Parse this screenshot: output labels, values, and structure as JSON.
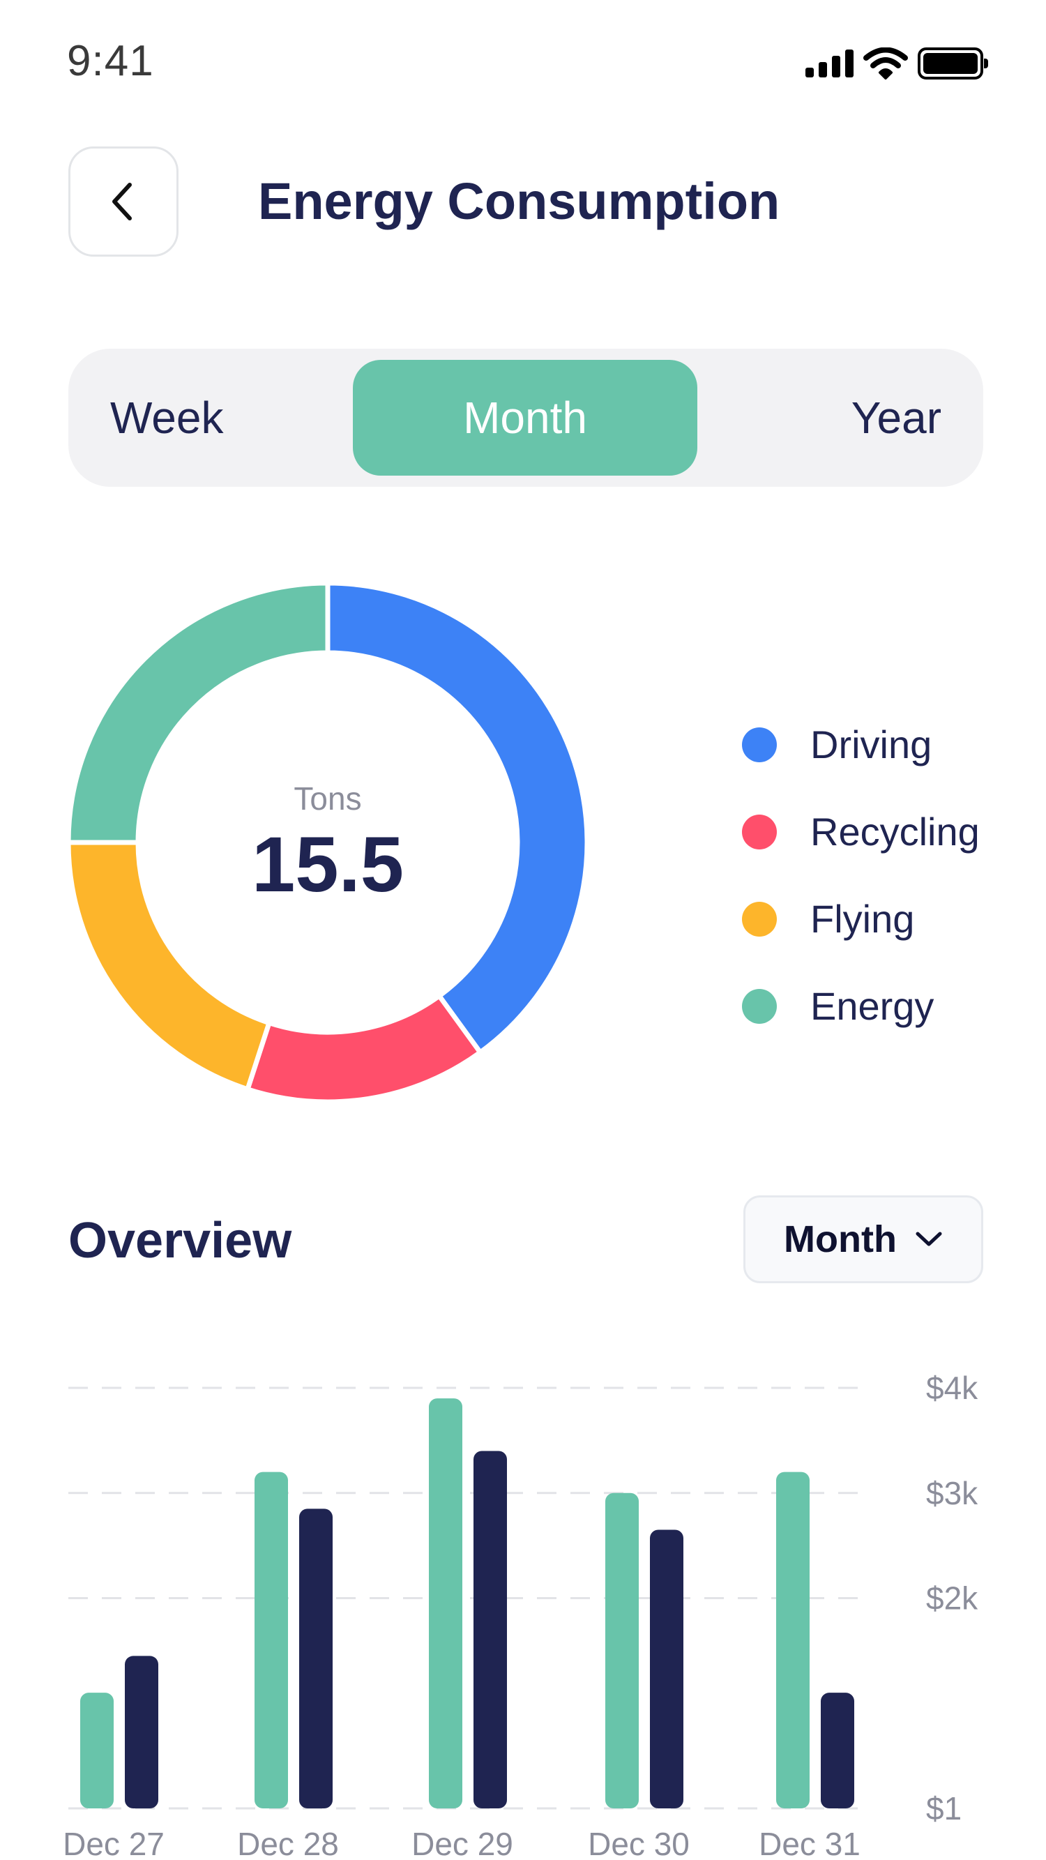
{
  "status_bar": {
    "time": "9:41",
    "signal_icon": "signal-icon",
    "wifi_icon": "wifi-icon",
    "battery_icon": "battery-icon"
  },
  "header": {
    "back_icon": "chevron-left-icon",
    "title": "Energy Consumption"
  },
  "period_tabs": {
    "items": [
      {
        "label": "Week",
        "selected": false
      },
      {
        "label": "Month",
        "selected": true
      },
      {
        "label": "Year",
        "selected": false
      }
    ],
    "active_color": "#68c4aa"
  },
  "donut": {
    "unit_label": "Tons",
    "total": "15.5",
    "segments": [
      {
        "name": "Driving",
        "percent": 40,
        "color": "#3d82f6"
      },
      {
        "name": "Recycling",
        "percent": 15,
        "color": "#ff4f6b"
      },
      {
        "name": "Flying",
        "percent": 20,
        "color": "#fdb52b"
      },
      {
        "name": "Energy",
        "percent": 25,
        "color": "#68c4aa"
      }
    ]
  },
  "legend": {
    "items": [
      {
        "label": "Driving",
        "color": "#3d82f6"
      },
      {
        "label": "Recycling",
        "color": "#ff4f6b"
      },
      {
        "label": "Flying",
        "color": "#fdb52b"
      },
      {
        "label": "Energy",
        "color": "#68c4aa"
      }
    ]
  },
  "overview": {
    "title": "Overview",
    "select_value": "Month",
    "select_icon": "chevron-down-icon"
  },
  "chart_data": {
    "type": "bar",
    "categories": [
      "Dec 27",
      "Dec 28",
      "Dec 29",
      "Dec 30",
      "Dec 31"
    ],
    "series": [
      {
        "values": [
          1100,
          3200,
          3900,
          3000,
          3200
        ],
        "color": "#68c4aa"
      },
      {
        "values": [
          1450,
          2850,
          3400,
          2650,
          1100
        ],
        "color": "#1f2451"
      }
    ],
    "yticks": [
      "$1",
      "$2k",
      "$3k",
      "$4k"
    ],
    "ylim": [
      0,
      4000
    ],
    "grid": true
  }
}
